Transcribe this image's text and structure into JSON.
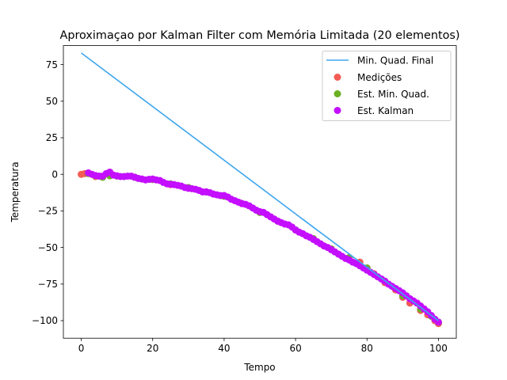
{
  "chart_data": {
    "type": "scatter",
    "title": "Aproximaçao por Kalman Filter com Memória Limitada (20 elementos)",
    "xlabel": "Tempo",
    "ylabel": "Temperatura",
    "xlim": [
      -5,
      105
    ],
    "ylim": [
      -112,
      88
    ],
    "xticks": [
      0,
      20,
      40,
      60,
      80,
      100
    ],
    "yticks": [
      75,
      50,
      25,
      0,
      -25,
      -50,
      -75,
      -100
    ],
    "xtick_labels": [
      "0",
      "20",
      "40",
      "60",
      "80",
      "100"
    ],
    "ytick_labels": [
      "75",
      "50",
      "25",
      "0",
      "−25",
      "−50",
      "−75",
      "−100"
    ],
    "grid": false,
    "legend_position": "top-right",
    "series": [
      {
        "name": "Min. Quad. Final",
        "kind": "line",
        "color": "#3ea6f0",
        "x": [
          0,
          66,
          100
        ],
        "y": [
          83,
          -38,
          -100
        ]
      },
      {
        "name": "Medições",
        "kind": "scatter",
        "color": "#f25c54",
        "x": [
          0,
          1,
          2,
          4,
          6,
          8,
          10,
          15,
          20,
          25,
          30,
          35,
          40,
          45,
          50,
          55,
          60,
          65,
          70,
          75,
          78,
          80,
          82,
          85,
          88,
          90,
          92,
          95,
          97,
          99,
          100
        ],
        "y": [
          0,
          0.5,
          0.8,
          -1.5,
          -1.8,
          1.5,
          -1,
          -2,
          -3.5,
          -7,
          -9.5,
          -12,
          -14.5,
          -20,
          -26,
          -32,
          -38,
          -44,
          -51,
          -57,
          -60,
          -64,
          -68,
          -74,
          -79,
          -84,
          -88,
          -93,
          -96,
          -100,
          -102
        ]
      },
      {
        "name": "Est. Min. Quad.",
        "kind": "scatter",
        "color": "#6ab023",
        "x": [
          2,
          4,
          6,
          8,
          10,
          12,
          15,
          20,
          25,
          30,
          35,
          40,
          45,
          50,
          55,
          60,
          65,
          70,
          75,
          80,
          85,
          90,
          95,
          98,
          100
        ],
        "y": [
          0.5,
          -1,
          -2,
          -1,
          -1.2,
          -1.5,
          -2,
          -3.5,
          -6.5,
          -9,
          -12,
          -15,
          -20,
          -26,
          -32,
          -38,
          -44,
          -51,
          -57,
          -64,
          -73,
          -83,
          -92,
          -97,
          -101
        ]
      },
      {
        "name": "Est. Kalman",
        "kind": "scatter",
        "color": "#c40eff",
        "x": [
          2,
          3,
          4,
          5,
          6,
          7,
          8,
          9,
          10,
          11,
          12,
          13,
          14,
          15,
          16,
          17,
          18,
          19,
          20,
          21,
          22,
          23,
          24,
          25,
          26,
          27,
          28,
          29,
          30,
          31,
          32,
          33,
          34,
          35,
          36,
          37,
          38,
          39,
          40,
          41,
          42,
          43,
          44,
          45,
          46,
          47,
          48,
          49,
          50,
          51,
          52,
          53,
          54,
          55,
          56,
          57,
          58,
          59,
          60,
          61,
          62,
          63,
          64,
          65,
          66,
          67,
          68,
          69,
          70,
          71,
          72,
          73,
          74,
          75,
          76,
          77,
          78,
          79,
          80,
          81,
          82,
          83,
          84,
          85,
          86,
          87,
          88,
          89,
          90,
          91,
          92,
          93,
          94,
          95,
          96,
          97,
          98,
          99,
          100
        ],
        "y": [
          1,
          0,
          -0.8,
          -1.2,
          -1.2,
          0.5,
          1.5,
          -0.5,
          -1,
          -1.5,
          -1.5,
          -1.2,
          -1.2,
          -2,
          -2.8,
          -3.2,
          -3.8,
          -3.4,
          -3.2,
          -3.8,
          -4.2,
          -5.5,
          -6.5,
          -6.8,
          -7,
          -7.5,
          -8,
          -9,
          -9.5,
          -9.8,
          -10.2,
          -11,
          -12,
          -12,
          -12.5,
          -13.5,
          -14,
          -14.5,
          -14.5,
          -15.5,
          -17,
          -18,
          -19,
          -20,
          -20.5,
          -21.5,
          -23,
          -24.5,
          -25.5,
          -26,
          -27.5,
          -29,
          -30.5,
          -32,
          -33,
          -34,
          -34.5,
          -36,
          -38,
          -39.5,
          -40.5,
          -42,
          -43,
          -44.5,
          -46,
          -47.5,
          -49,
          -50,
          -51.5,
          -53,
          -54.5,
          -56,
          -57.5,
          -58.5,
          -60,
          -61,
          -62.5,
          -64,
          -65.5,
          -67,
          -68.5,
          -70,
          -71.5,
          -73,
          -75,
          -76.5,
          -78,
          -79.5,
          -81,
          -83,
          -85,
          -86.5,
          -88,
          -90,
          -92,
          -94,
          -96.5,
          -99,
          -101
        ]
      }
    ]
  }
}
